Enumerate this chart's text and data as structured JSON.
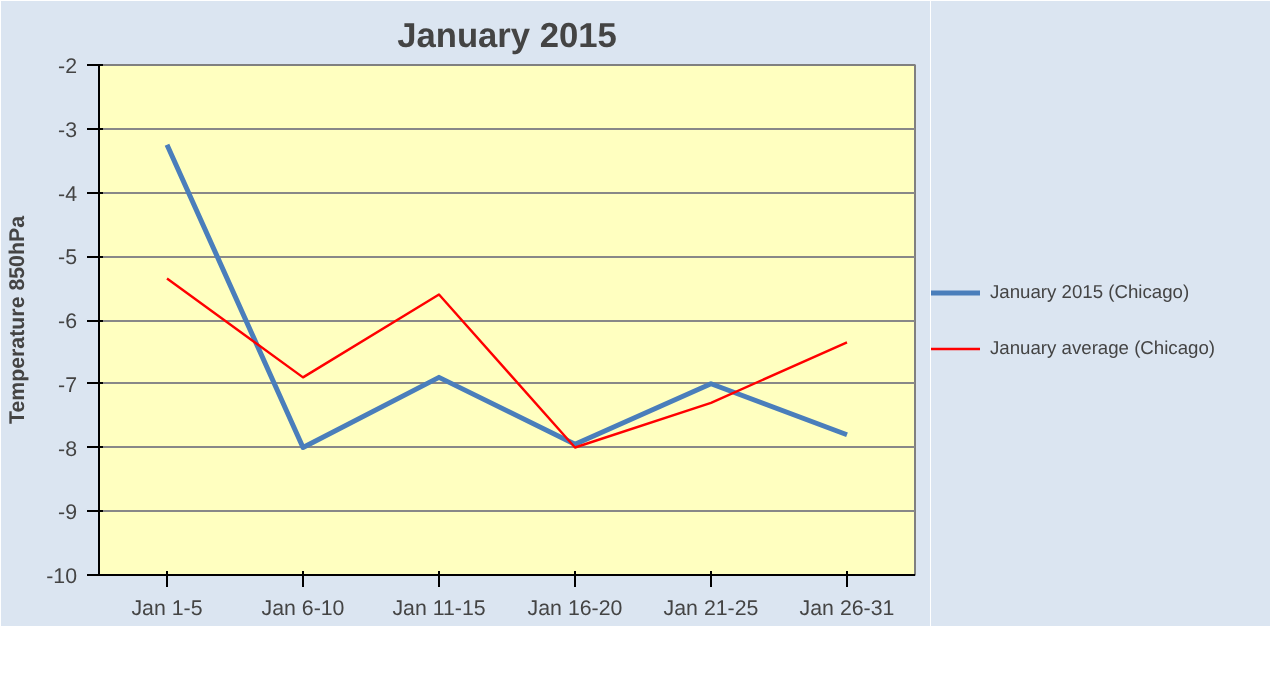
{
  "chart_data": {
    "type": "line",
    "title": "January 2015",
    "ylabel": "Temperature 850hPa",
    "categories": [
      "Jan 1-5",
      "Jan 6-10",
      "Jan 11-15",
      "Jan 16-20",
      "Jan 21-25",
      "Jan 26-31"
    ],
    "series": [
      {
        "name": "January 2015 (Chicago)",
        "color": "#4a7ebb",
        "values": [
          -3.25,
          -8.0,
          -6.9,
          -7.95,
          -7.0,
          -7.8
        ]
      },
      {
        "name": "January average (Chicago)",
        "color": "#ff0000",
        "values": [
          -5.35,
          -6.9,
          -5.6,
          -8.0,
          -7.3,
          -6.35
        ]
      }
    ],
    "ylim": [
      -10,
      -2
    ],
    "yticks": [
      -10,
      -9,
      -8,
      -7,
      -6,
      -5,
      -4,
      -3,
      -2
    ],
    "grid": "y",
    "legend": "right",
    "marker": "none",
    "line_style": "solid"
  }
}
